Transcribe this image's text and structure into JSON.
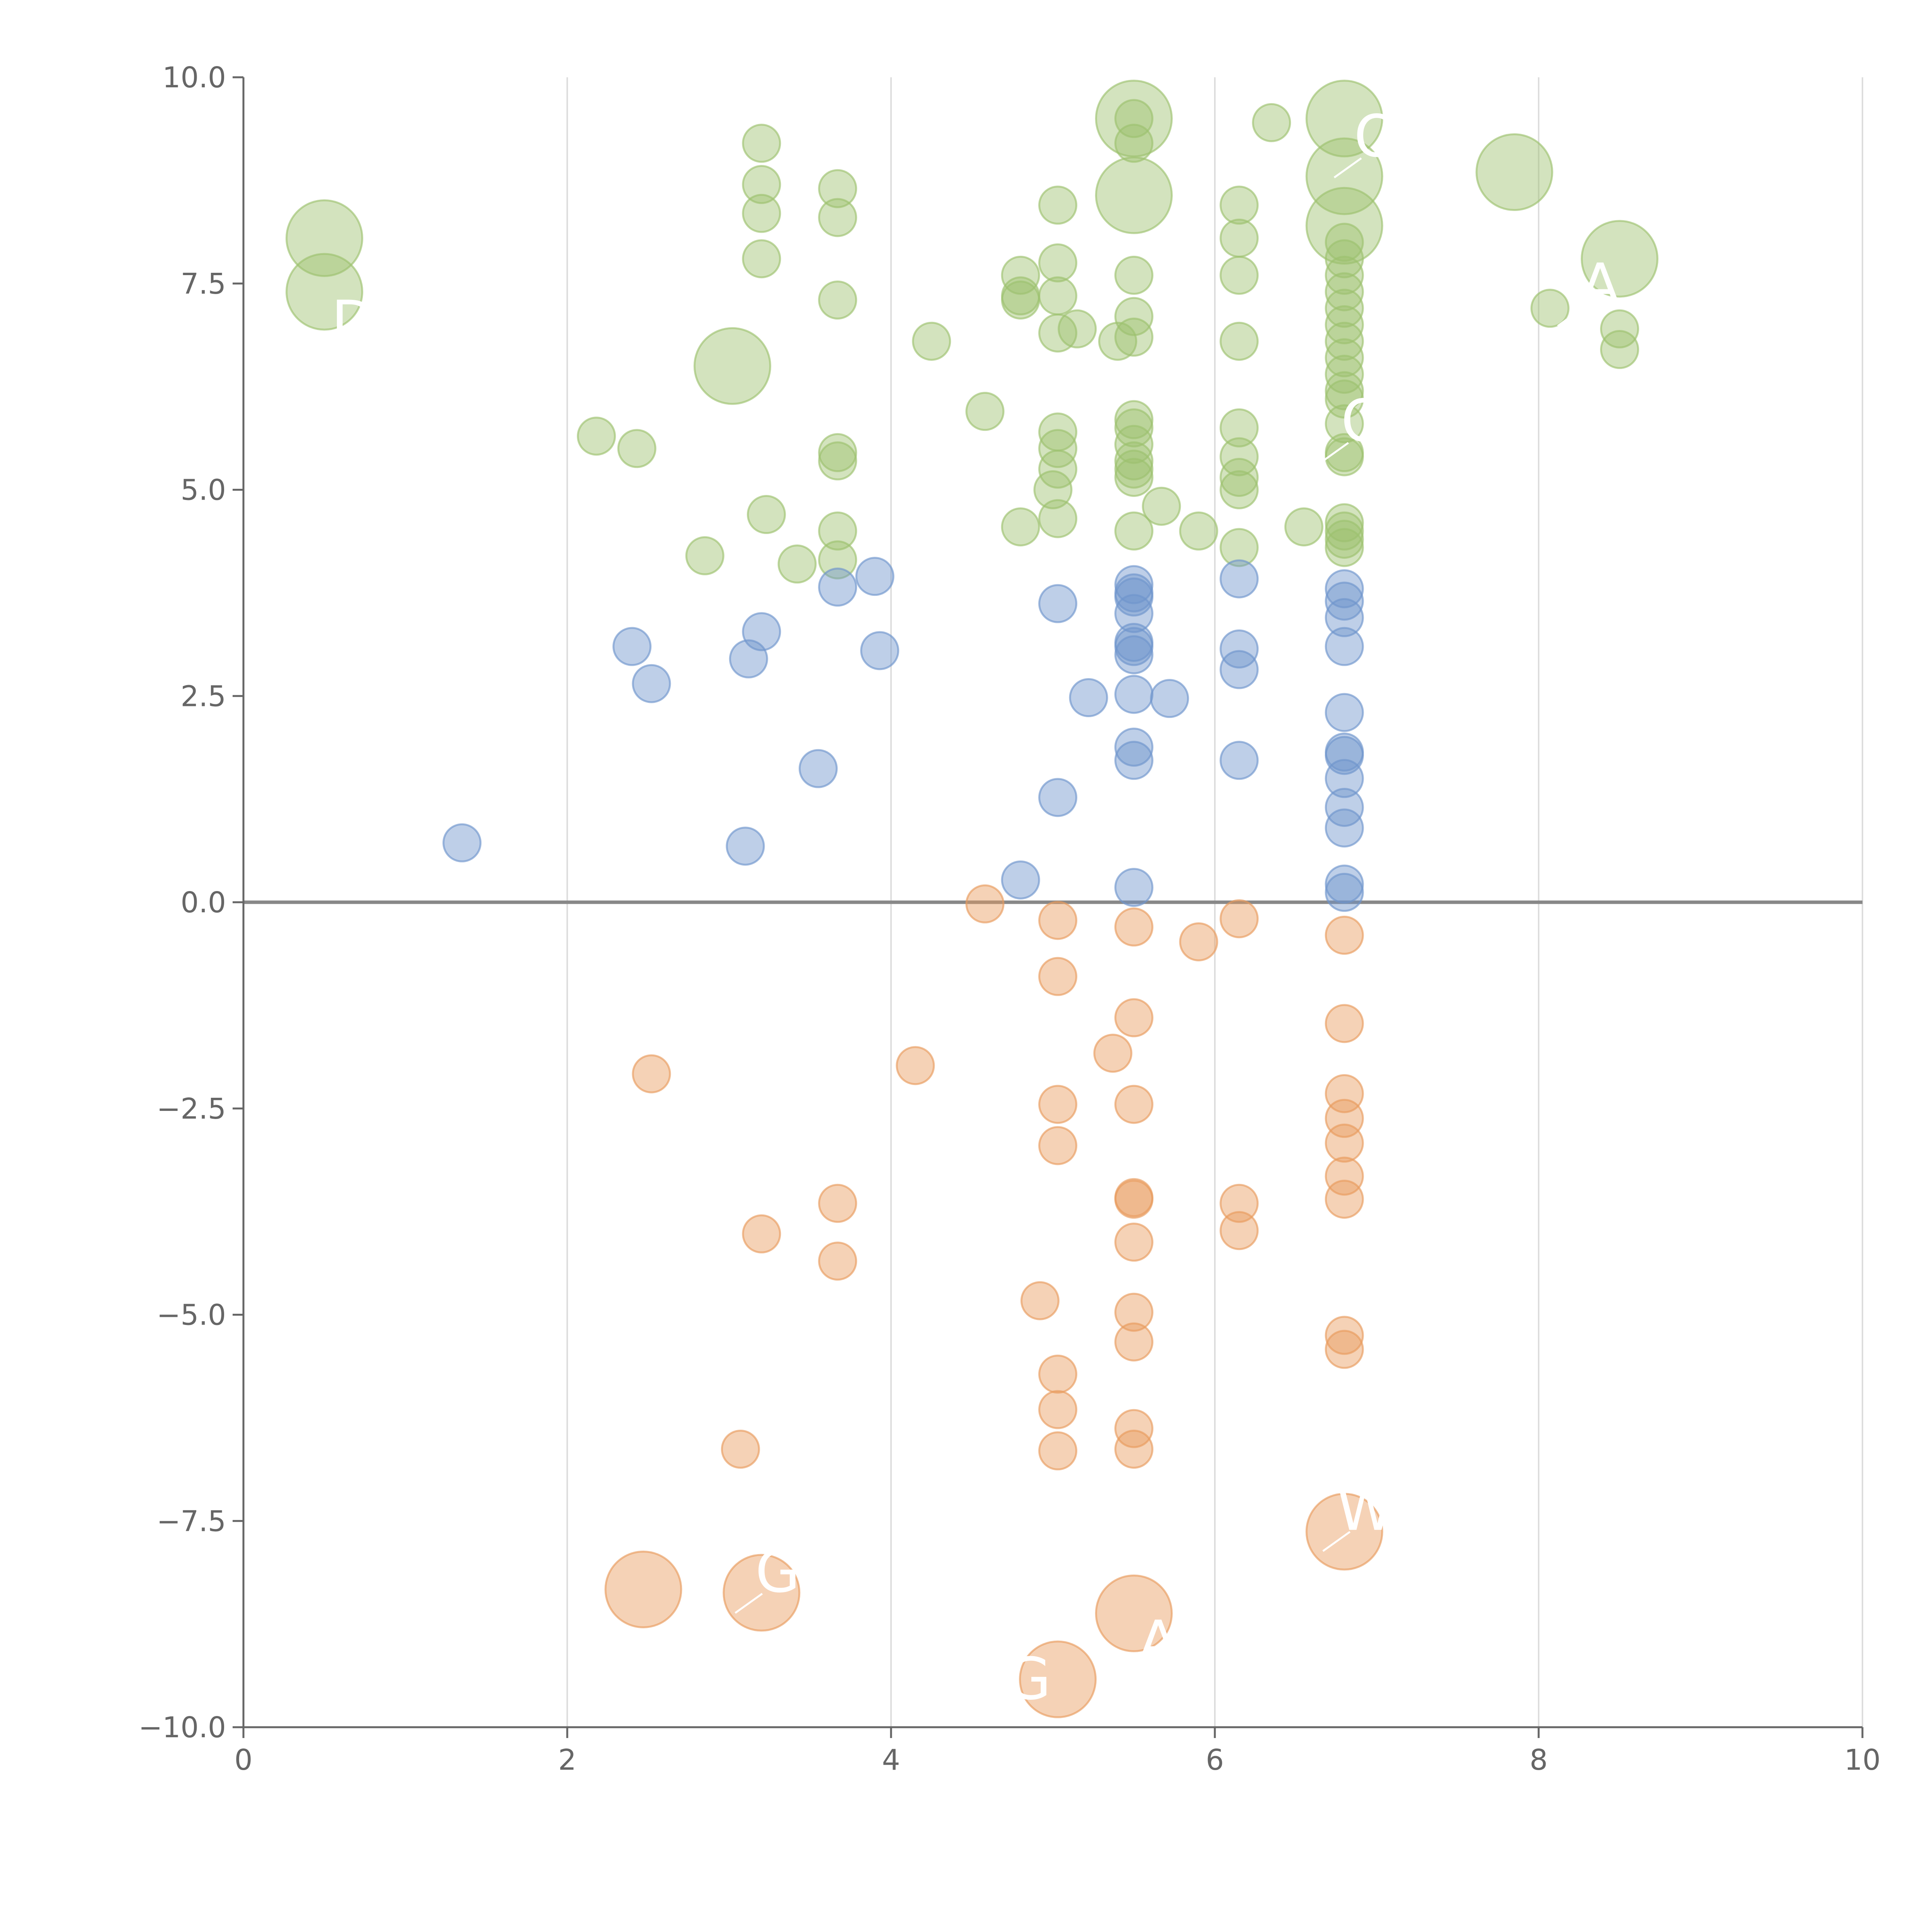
{
  "chart_data": {
    "type": "scatter",
    "title": "",
    "xlabel": "",
    "ylabel": "",
    "xlim": [
      0,
      10
    ],
    "ylim": [
      -10,
      10
    ],
    "grid": "vertical lines at major x ticks",
    "x_ticks": [
      0,
      2,
      4,
      6,
      8,
      10
    ],
    "x_tick_labels": [
      "0",
      "2",
      "4",
      "6",
      "8",
      "10"
    ],
    "y_ticks": [
      -10,
      -7.5,
      -5,
      -2.5,
      0,
      2.5,
      5,
      7.5,
      10
    ],
    "y_tick_labels": [
      "−10.0",
      "−7.5",
      "−5.0",
      "−2.5",
      "0.0",
      "2.5",
      "5.0",
      "7.5",
      "10.0"
    ],
    "zero_line": 0,
    "colors": {
      "green": "#9dc16e",
      "blue": "#6f95cc",
      "orange": "#e89b5e",
      "axis": "#666666",
      "grid": "#dddddd",
      "zero": "#888888"
    },
    "series": [
      {
        "name": "green",
        "points": [
          [
            0.5,
            8.05,
            2
          ],
          [
            0.5,
            7.4,
            2
          ],
          [
            3.02,
            6.5,
            2
          ],
          [
            5.5,
            9.5,
            2
          ],
          [
            5.5,
            8.57,
            2
          ],
          [
            6.8,
            9.5,
            2
          ],
          [
            6.8,
            8.8,
            2
          ],
          [
            6.8,
            8.2,
            2
          ],
          [
            7.85,
            8.85,
            2
          ],
          [
            8.5,
            7.8,
            2
          ],
          [
            3.2,
            9.2,
            1
          ],
          [
            3.2,
            8.7,
            1
          ],
          [
            3.2,
            8.35,
            1
          ],
          [
            3.2,
            7.8,
            1
          ],
          [
            3.67,
            8.65,
            1
          ],
          [
            3.67,
            8.3,
            1
          ],
          [
            3.67,
            7.3,
            1
          ],
          [
            4.25,
            6.8,
            1
          ],
          [
            2.18,
            5.65,
            1
          ],
          [
            2.43,
            5.5,
            1
          ],
          [
            3.67,
            5.45,
            1
          ],
          [
            3.67,
            5.35,
            1
          ],
          [
            3.23,
            4.7,
            1
          ],
          [
            3.67,
            4.5,
            1
          ],
          [
            3.67,
            4.15,
            1
          ],
          [
            3.42,
            4.1,
            1
          ],
          [
            2.85,
            4.2,
            1
          ],
          [
            4.58,
            5.95,
            1
          ],
          [
            4.8,
            4.55,
            1
          ],
          [
            4.8,
            7.6,
            1
          ],
          [
            4.8,
            7.35,
            1
          ],
          [
            4.8,
            7.3,
            1
          ],
          [
            5.03,
            8.45,
            1
          ],
          [
            5.03,
            7.75,
            1
          ],
          [
            5.03,
            7.35,
            1
          ],
          [
            5.03,
            6.9,
            1
          ],
          [
            5.03,
            5.7,
            1
          ],
          [
            5.03,
            5.5,
            1
          ],
          [
            5.03,
            5.25,
            1
          ],
          [
            5.0,
            5.0,
            1
          ],
          [
            5.03,
            4.65,
            1
          ],
          [
            5.15,
            6.95,
            1
          ],
          [
            5.5,
            9.5,
            1
          ],
          [
            5.5,
            9.2,
            1
          ],
          [
            5.5,
            7.6,
            1
          ],
          [
            5.5,
            7.1,
            1
          ],
          [
            5.5,
            6.85,
            1
          ],
          [
            5.5,
            5.85,
            1
          ],
          [
            5.5,
            5.75,
            1
          ],
          [
            5.5,
            5.55,
            1
          ],
          [
            5.5,
            5.35,
            1
          ],
          [
            5.5,
            5.25,
            1
          ],
          [
            5.5,
            5.15,
            1
          ],
          [
            5.5,
            4.5,
            1
          ],
          [
            5.4,
            6.8,
            1
          ],
          [
            5.67,
            4.8,
            1
          ],
          [
            5.9,
            4.5,
            1
          ],
          [
            6.35,
            9.45,
            1
          ],
          [
            6.15,
            8.45,
            1
          ],
          [
            6.15,
            8.05,
            1
          ],
          [
            6.15,
            7.6,
            1
          ],
          [
            6.15,
            6.8,
            1
          ],
          [
            6.15,
            5.75,
            1
          ],
          [
            6.15,
            5.4,
            1
          ],
          [
            6.15,
            5.15,
            1
          ],
          [
            6.15,
            5.0,
            1
          ],
          [
            6.15,
            4.3,
            1
          ],
          [
            6.55,
            4.55,
            1
          ],
          [
            6.8,
            8.0,
            1
          ],
          [
            6.8,
            7.8,
            1
          ],
          [
            6.8,
            7.6,
            1
          ],
          [
            6.8,
            7.4,
            1
          ],
          [
            6.8,
            7.2,
            1
          ],
          [
            6.8,
            7.0,
            1
          ],
          [
            6.8,
            6.8,
            1
          ],
          [
            6.8,
            6.6,
            1
          ],
          [
            6.8,
            6.4,
            1
          ],
          [
            6.8,
            6.2,
            1
          ],
          [
            6.8,
            6.1,
            1
          ],
          [
            6.8,
            5.8,
            1
          ],
          [
            6.8,
            5.45,
            1
          ],
          [
            6.8,
            5.4,
            1
          ],
          [
            6.8,
            4.6,
            1
          ],
          [
            6.8,
            4.5,
            1
          ],
          [
            6.8,
            4.4,
            1
          ],
          [
            6.8,
            4.3,
            1
          ],
          [
            8.07,
            7.2,
            1
          ],
          [
            8.5,
            6.95,
            1
          ],
          [
            8.5,
            6.7,
            1
          ]
        ]
      },
      {
        "name": "blue",
        "points": [
          [
            1.35,
            0.72,
            1
          ],
          [
            2.4,
            3.1,
            1
          ],
          [
            2.52,
            2.65,
            1
          ],
          [
            3.12,
            2.95,
            1
          ],
          [
            3.1,
            0.68,
            1
          ],
          [
            3.2,
            3.28,
            1
          ],
          [
            3.55,
            1.62,
            1
          ],
          [
            3.67,
            3.82,
            1
          ],
          [
            3.9,
            3.95,
            1
          ],
          [
            3.93,
            3.05,
            1
          ],
          [
            4.8,
            0.27,
            1
          ],
          [
            5.03,
            3.62,
            1
          ],
          [
            5.03,
            1.27,
            1
          ],
          [
            5.22,
            2.48,
            1
          ],
          [
            5.5,
            3.85,
            1
          ],
          [
            5.5,
            3.75,
            1
          ],
          [
            5.5,
            3.7,
            1
          ],
          [
            5.5,
            3.5,
            1
          ],
          [
            5.5,
            3.15,
            1
          ],
          [
            5.5,
            3.1,
            1
          ],
          [
            5.5,
            3.0,
            1
          ],
          [
            5.5,
            2.52,
            1
          ],
          [
            5.5,
            1.88,
            1
          ],
          [
            5.5,
            1.72,
            1
          ],
          [
            5.5,
            0.18,
            1
          ],
          [
            5.72,
            2.47,
            1
          ],
          [
            6.15,
            3.92,
            1
          ],
          [
            6.15,
            3.07,
            1
          ],
          [
            6.15,
            2.82,
            1
          ],
          [
            6.15,
            1.72,
            1
          ],
          [
            6.8,
            3.8,
            1
          ],
          [
            6.8,
            3.65,
            1
          ],
          [
            6.8,
            3.45,
            1
          ],
          [
            6.8,
            3.1,
            1
          ],
          [
            6.8,
            2.3,
            1
          ],
          [
            6.8,
            1.82,
            1
          ],
          [
            6.8,
            1.78,
            1
          ],
          [
            6.8,
            1.5,
            1
          ],
          [
            6.8,
            1.15,
            1
          ],
          [
            6.8,
            0.9,
            1
          ],
          [
            6.8,
            0.22,
            1
          ],
          [
            6.8,
            0.12,
            1
          ]
        ]
      },
      {
        "name": "orange",
        "points": [
          [
            2.47,
            -8.33,
            2
          ],
          [
            3.2,
            -8.37,
            2
          ],
          [
            5.5,
            -8.62,
            2
          ],
          [
            5.03,
            -9.42,
            2
          ],
          [
            6.8,
            -7.63,
            2
          ],
          [
            2.52,
            -2.08,
            1
          ],
          [
            3.07,
            -6.63,
            1
          ],
          [
            3.2,
            -4.02,
            1
          ],
          [
            3.67,
            -3.65,
            1
          ],
          [
            3.67,
            -4.35,
            1
          ],
          [
            4.15,
            -1.98,
            1
          ],
          [
            4.58,
            -0.02,
            1
          ],
          [
            4.92,
            -4.83,
            1
          ],
          [
            5.03,
            -0.22,
            1
          ],
          [
            5.03,
            -0.9,
            1
          ],
          [
            5.03,
            -2.45,
            1
          ],
          [
            5.03,
            -2.95,
            1
          ],
          [
            5.03,
            -5.72,
            1
          ],
          [
            5.03,
            -6.15,
            1
          ],
          [
            5.03,
            -6.65,
            1
          ],
          [
            5.37,
            -1.83,
            1
          ],
          [
            5.5,
            -0.3,
            1
          ],
          [
            5.5,
            -1.4,
            1
          ],
          [
            5.5,
            -2.45,
            1
          ],
          [
            5.5,
            -3.58,
            1
          ],
          [
            5.5,
            -3.6,
            1
          ],
          [
            5.5,
            -4.12,
            1
          ],
          [
            5.5,
            -4.97,
            1
          ],
          [
            5.5,
            -5.33,
            1
          ],
          [
            5.5,
            -6.38,
            1
          ],
          [
            5.5,
            -6.63,
            1
          ],
          [
            5.9,
            -0.48,
            1
          ],
          [
            6.15,
            -0.2,
            1
          ],
          [
            6.15,
            -3.65,
            1
          ],
          [
            6.15,
            -3.98,
            1
          ],
          [
            6.8,
            -0.4,
            1
          ],
          [
            6.8,
            -1.47,
            1
          ],
          [
            6.8,
            -2.32,
            1
          ],
          [
            6.8,
            -2.62,
            1
          ],
          [
            6.8,
            -2.92,
            1
          ],
          [
            6.8,
            -3.32,
            1
          ],
          [
            6.8,
            -3.6,
            1
          ],
          [
            6.8,
            -5.25,
            1
          ],
          [
            6.8,
            -5.42,
            1
          ]
        ]
      }
    ],
    "annotations": [
      {
        "text": "G",
        "x": 4.85,
        "y": -9.4
      },
      {
        "text": "A",
        "x": 5.65,
        "y": -8.95
      },
      {
        "text": "G",
        "x": 3.3,
        "y": -8.1
      },
      {
        "text": "W",
        "x": 6.93,
        "y": -7.35
      },
      {
        "text": "O",
        "x": 7.0,
        "y": 9.3
      },
      {
        "text": "A",
        "x": 8.38,
        "y": 7.5
      },
      {
        "text": "O",
        "x": 6.92,
        "y": 5.85
      },
      {
        "text": "D",
        "x": 0.68,
        "y": 7.05
      }
    ]
  }
}
